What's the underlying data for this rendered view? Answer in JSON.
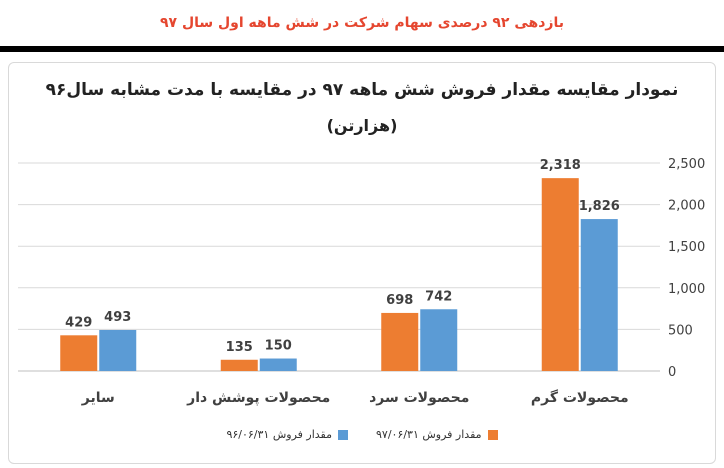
{
  "headline": "بازدهی ۹۲ درصدی سهام شرکت در شش ماهه اول سال ۹۷",
  "chart_data": {
    "type": "bar",
    "title": "نمودار مقایسه مقدار فروش شش ماهه ۹۷ در مقایسه با مدت مشابه سال۹۶",
    "subtitle": "(هزارتن)",
    "categories": [
      "سایر",
      "محصولات پوشش دار",
      "محصولات سرد",
      "محصولات گرم"
    ],
    "series": [
      {
        "name": "مقدار فروش ۹۷/۰۶/۳۱",
        "color": "#ed7d31",
        "values": [
          429,
          135,
          698,
          2318
        ],
        "labels": [
          "429",
          "135",
          "698",
          "2,318"
        ]
      },
      {
        "name": "مقدار فروش ۹۶/۰۶/۳۱",
        "color": "#5b9bd5",
        "values": [
          493,
          150,
          742,
          1826
        ],
        "labels": [
          "493",
          "150",
          "742",
          "1,826"
        ]
      }
    ],
    "y_ticks": [
      "0",
      "500",
      "1,000",
      "1,500",
      "2,000",
      "2,500"
    ],
    "ylim": [
      0,
      2500
    ],
    "y_axis_side": "right",
    "grid": true,
    "legend_position": "bottom"
  }
}
